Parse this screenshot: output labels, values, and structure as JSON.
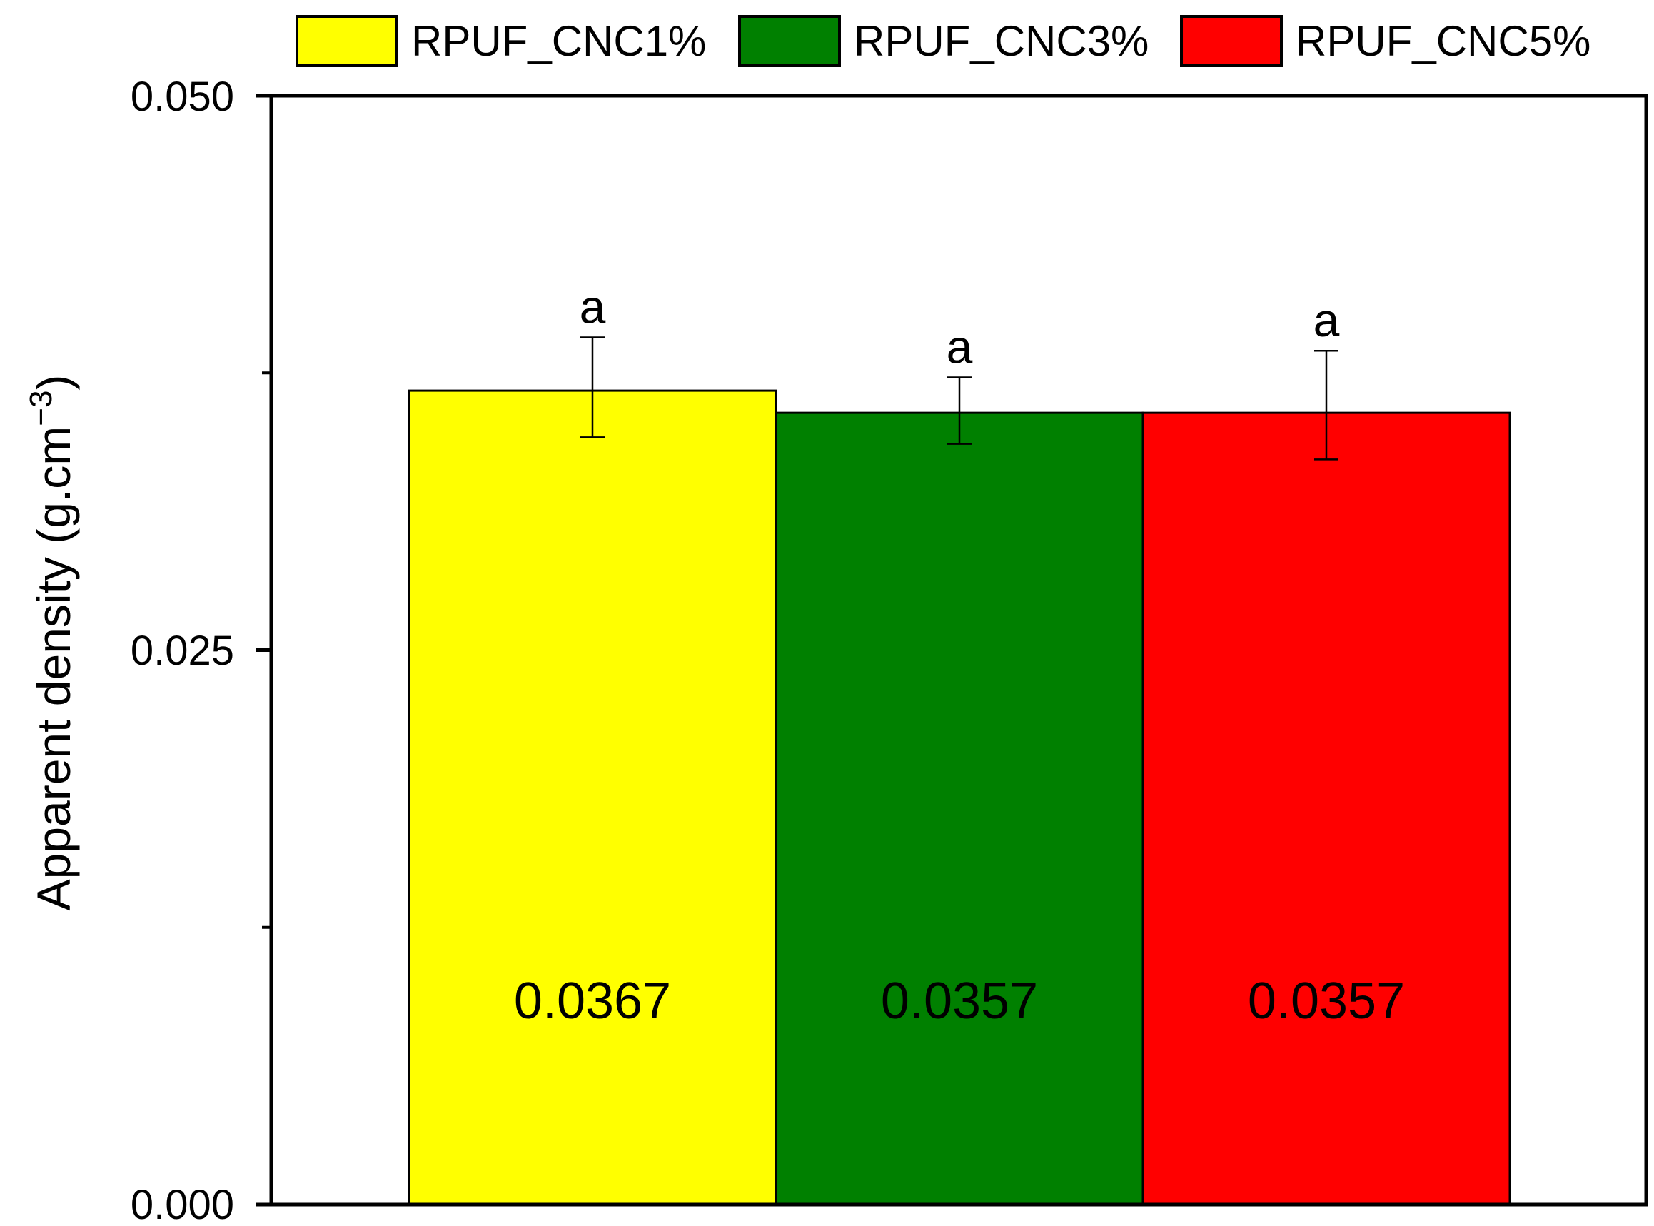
{
  "chart_data": {
    "type": "bar",
    "categories": [
      "RPUF_CNC1%",
      "RPUF_CNC3%",
      "RPUF_CNC5%"
    ],
    "values": [
      0.0367,
      0.0357,
      0.0357
    ],
    "error_upper": [
      0.0391,
      0.0373,
      0.0385
    ],
    "error_lower": [
      0.0346,
      0.0343,
      0.0336
    ],
    "data_labels": [
      "0.0367",
      "0.0357",
      "0.0357"
    ],
    "significance_labels": [
      "a",
      "a",
      "a"
    ],
    "colors": [
      "#FFFF00",
      "#008000",
      "#FF0000"
    ],
    "ylabel": "Apparent density (g.cm",
    "ylabel_sup": "−3",
    "ylabel_close": ")",
    "ylim": [
      0.0,
      0.05
    ],
    "yticks": [
      "0.000",
      "0.025",
      "0.050"
    ],
    "minor_yticks": [
      0.0125,
      0.0375
    ],
    "legend": {
      "placement": "top",
      "entries": [
        "RPUF_CNC1%",
        "RPUF_CNC3%",
        "RPUF_CNC5%"
      ]
    },
    "grid": false
  }
}
